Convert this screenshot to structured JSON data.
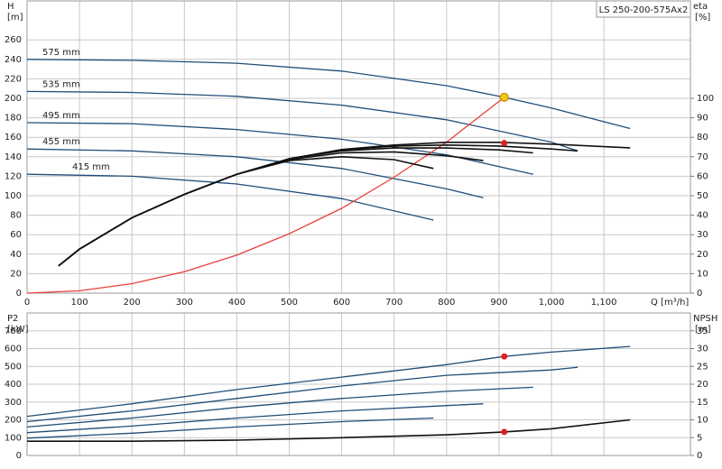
{
  "chart_data": [
    {
      "type": "line",
      "title": "LS 250-200-575Ax2",
      "ylabel": "H",
      "yunit": "[m]",
      "y2label": "eta",
      "y2unit": "[%]",
      "xlabel": "Q [m³/h]",
      "xlim": [
        0,
        1265
      ],
      "xticks": [
        0,
        100,
        200,
        300,
        400,
        500,
        600,
        700,
        800,
        900,
        {
          "value": 1000,
          "label": "1,000"
        },
        {
          "value": 1100,
          "label": "1,100"
        }
      ],
      "ylim": [
        0,
        300
      ],
      "yticks": [
        0,
        20,
        40,
        60,
        80,
        100,
        120,
        140,
        160,
        180,
        200,
        220,
        240,
        260
      ],
      "y2lim": [
        0,
        150
      ],
      "y2ticks": [
        0,
        10,
        20,
        30,
        40,
        50,
        60,
        70,
        80,
        90,
        100
      ],
      "grid": true,
      "series": [
        {
          "name": "575 mm",
          "color": "#1f4e79",
          "x": [
            0,
            200,
            400,
            600,
            800,
            910,
            1000,
            1150
          ],
          "values": [
            240,
            239,
            236,
            228,
            213,
            201,
            190,
            169
          ]
        },
        {
          "name": "535 mm",
          "color": "#1f4e79",
          "x": [
            0,
            200,
            400,
            600,
            800,
            1000,
            1050
          ],
          "values": [
            207,
            206,
            202,
            193,
            178,
            155,
            146
          ]
        },
        {
          "name": "495 mm",
          "color": "#1f4e79",
          "x": [
            0,
            200,
            400,
            600,
            800,
            965
          ],
          "values": [
            175,
            174,
            168,
            158,
            142,
            122
          ]
        },
        {
          "name": "455 mm",
          "color": "#1f4e79",
          "x": [
            0,
            200,
            400,
            600,
            800,
            870
          ],
          "values": [
            148,
            146,
            140,
            128,
            107,
            98
          ]
        },
        {
          "name": "415 mm",
          "color": "#1f4e79",
          "x": [
            0,
            200,
            400,
            600,
            775
          ],
          "values": [
            122,
            120,
            112,
            97,
            75
          ]
        },
        {
          "color": "#e8403a",
          "x": [
            0,
            100,
            200,
            300,
            400,
            500,
            600,
            700,
            800,
            910
          ],
          "values": [
            0,
            2.4,
            9.7,
            22,
            39,
            61,
            87,
            119,
            155,
            201
          ]
        },
        {
          "color": "#111111",
          "axis": "y2",
          "x": [
            60,
            100,
            200,
            300,
            400,
            500,
            600,
            700,
            800,
            900,
            1000,
            1150
          ],
          "values": [
            14,
            22.6,
            38.7,
            50.7,
            61,
            69,
            73.7,
            76,
            77.4,
            77.4,
            76.5,
            74.6
          ]
        },
        {
          "color": "#111111",
          "axis": "y2",
          "x": [
            60,
            100,
            200,
            300,
            400,
            500,
            600,
            700,
            800,
            900,
            1000,
            1050
          ],
          "values": [
            14,
            22.6,
            38.7,
            50.7,
            61,
            69,
            73.5,
            75.5,
            76,
            75.5,
            74,
            73
          ]
        },
        {
          "color": "#111111",
          "axis": "y2",
          "x": [
            60,
            100,
            200,
            300,
            400,
            500,
            600,
            700,
            800,
            900,
            965
          ],
          "values": [
            14,
            22.6,
            38.7,
            50.7,
            61,
            69,
            73,
            74.5,
            74.5,
            73.5,
            72
          ]
        },
        {
          "color": "#111111",
          "axis": "y2",
          "x": [
            60,
            100,
            200,
            300,
            400,
            500,
            600,
            700,
            800,
            870
          ],
          "values": [
            14,
            22.6,
            38.7,
            50.7,
            61,
            68.5,
            72,
            72.5,
            70.5,
            68
          ]
        },
        {
          "color": "#111111",
          "axis": "y2",
          "x": [
            60,
            100,
            200,
            300,
            400,
            500,
            600,
            700,
            775
          ],
          "values": [
            14,
            22.6,
            38.7,
            50.7,
            61,
            68,
            70,
            68.5,
            64
          ]
        }
      ],
      "points": [
        {
          "x": 910,
          "y": 201,
          "color": "#f5c518"
        },
        {
          "x": 910,
          "y": 77,
          "axis": "y2",
          "color": "#e02020"
        }
      ]
    },
    {
      "type": "line",
      "ylabel": "P2",
      "yunit": "[kW]",
      "y2label": "NPSH",
      "y2unit": "[m]",
      "xlim": [
        0,
        1265
      ],
      "xticks": [
        0,
        100,
        200,
        300,
        400,
        500,
        600,
        700,
        800,
        900,
        1000,
        1100
      ],
      "ylim": [
        0,
        800
      ],
      "yticks": [
        0,
        100,
        200,
        300,
        400,
        500,
        600,
        700
      ],
      "y2lim": [
        0,
        40
      ],
      "y2ticks": [
        0,
        5,
        10,
        15,
        20,
        25,
        30,
        35
      ],
      "grid": true,
      "series": [
        {
          "color": "#1f4e79",
          "x": [
            0,
            200,
            400,
            600,
            800,
            910,
            1000,
            1150
          ],
          "values": [
            220,
            290,
            370,
            440,
            510,
            556,
            580,
            612
          ]
        },
        {
          "color": "#1f4e79",
          "x": [
            0,
            200,
            400,
            600,
            800,
            1000,
            1050
          ],
          "values": [
            190,
            250,
            320,
            390,
            450,
            480,
            495
          ]
        },
        {
          "color": "#1f4e79",
          "x": [
            0,
            200,
            400,
            600,
            800,
            965
          ],
          "values": [
            160,
            210,
            270,
            320,
            360,
            383
          ]
        },
        {
          "color": "#1f4e79",
          "x": [
            0,
            200,
            400,
            600,
            800,
            870
          ],
          "values": [
            128,
            165,
            210,
            250,
            280,
            290
          ]
        },
        {
          "color": "#1f4e79",
          "x": [
            0,
            200,
            400,
            600,
            775
          ],
          "values": [
            97,
            125,
            160,
            190,
            210
          ]
        },
        {
          "color": "#111111",
          "axis": "y2",
          "x": [
            0,
            200,
            400,
            600,
            800,
            910,
            1000,
            1150
          ],
          "values": [
            4,
            4,
            4.3,
            5,
            5.8,
            6.6,
            7.5,
            10
          ]
        }
      ],
      "points": [
        {
          "x": 910,
          "y": 556,
          "color": "#e02020"
        },
        {
          "x": 910,
          "y": 6.6,
          "axis": "y2",
          "color": "#e02020"
        }
      ]
    }
  ]
}
